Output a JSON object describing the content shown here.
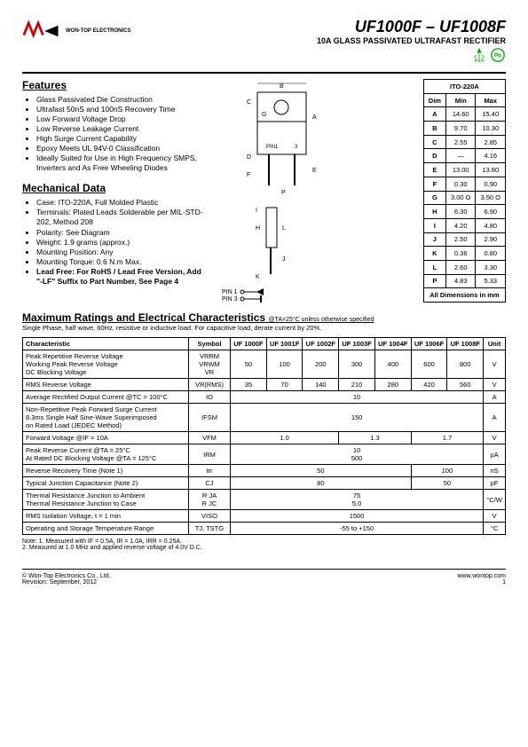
{
  "header": {
    "company": "WON-TOP ELECTRONICS",
    "part_title": "UF1000F – UF1008F",
    "subtitle": "10A GLASS PASSIVATED ULTRAFAST RECTIFIER",
    "rohs": "RoHS",
    "pb": "Pb"
  },
  "features": {
    "title": "Features",
    "items": [
      "Glass Passivated Die Construction",
      "Ultrafast 50nS and 100nS Recovery Time",
      "Low Forward Voltage Drop",
      "Low Reverse Leakage Current",
      "High Surge Current Capability",
      "Epoxy Meets UL 94V-0 Classification",
      "Ideally Suited for Use in High Frequency SMPS, Inverters and As Free Wheeling Diodes"
    ]
  },
  "mechanical": {
    "title": "Mechanical Data",
    "items": [
      "Case: ITO-220A, Full Molded Plastic",
      "Terminals: Plated Leads Solderable per MIL-STD-202, Method 208",
      "Polarity: See Diagram",
      "Weight: 1.9 grams (approx.)",
      "Mounting Position: Any",
      "Mounting Torque: 0.6 N.m Max."
    ],
    "leadfree": "Lead Free: For RoHS / Lead Free Version, Add \"-LF\" Suffix to Part Number, See Page 4"
  },
  "dim_table": {
    "header": "ITO-220A",
    "cols": [
      "Dim",
      "Min",
      "Max"
    ],
    "rows": [
      [
        "A",
        "14.60",
        "15.40"
      ],
      [
        "B",
        "9.70",
        "10.30"
      ],
      [
        "C",
        "2.55",
        "2.85"
      ],
      [
        "D",
        "—",
        "4.16"
      ],
      [
        "E",
        "13.00",
        "13.80"
      ],
      [
        "F",
        "0.30",
        "0.90"
      ],
      [
        "G",
        "3.00 O",
        "3.50 O"
      ],
      [
        "H",
        "6.30",
        "6.90"
      ],
      [
        "I",
        "4.20",
        "4.80"
      ],
      [
        "J",
        "2.50",
        "2.90"
      ],
      [
        "K",
        "0.36",
        "0.80"
      ],
      [
        "L",
        "2.60",
        "3.30"
      ],
      [
        "P",
        "4.83",
        "5.33"
      ]
    ],
    "footer": "All Dimensions in mm"
  },
  "pins": {
    "p1": "PIN 1",
    "p3": "PIN 3",
    "pkg_pin1": "PIN1",
    "pkg_pin3": "3"
  },
  "ratings": {
    "title": "Maximum Ratings and Electrical Characteristics",
    "cond": "@TA=25°C unless otherwise specified",
    "note": "Single Phase, half wave, 60Hz, resistive or inductive load. For capacitive load, derate current by 20%."
  },
  "elec": {
    "headers": [
      "Characteristic",
      "Symbol",
      "UF 1000F",
      "UF 1001F",
      "UF 1002F",
      "UF 1003F",
      "UF 1004F",
      "UF 1006F",
      "UF 1008F",
      "Unit"
    ],
    "rows": [
      {
        "char": "Peak Repetitive Reverse Voltage\nWorking Peak Reverse Voltage\nDC Blocking Voltage",
        "sym": "VRRM\nVRWM\nVR",
        "vals": [
          "50",
          "100",
          "200",
          "300",
          "400",
          "600",
          "800"
        ],
        "unit": "V"
      },
      {
        "char": "RMS Reverse Voltage",
        "sym": "VR(RMS)",
        "vals": [
          "35",
          "70",
          "140",
          "210",
          "280",
          "420",
          "560"
        ],
        "unit": "V"
      },
      {
        "char": "Average Rectified Output Current    @TC = 100°C",
        "sym": "IO",
        "span": "10",
        "unit": "A"
      },
      {
        "char": "Non-Repetitive Peak Forward Surge Current\n8.3ms Single Half Sine-Wave Superimposed\non Rated Load (JEDEC Method)",
        "sym": "IFSM",
        "span": "150",
        "unit": "A"
      },
      {
        "char": "Forward Voltage                    @IF = 10A",
        "sym": "VFM",
        "grp": [
          "1.0",
          "1.3",
          "1.7"
        ],
        "gcols": [
          3,
          2,
          2
        ],
        "unit": "V"
      },
      {
        "char": "Peak Reverse Current            @TA = 25°C\nAt Rated DC Blocking Voltage    @TA = 125°C",
        "sym": "IRM",
        "span": "10\n500",
        "unit": "µA"
      },
      {
        "char": "Reverse Recovery Time (Note 1)",
        "sym": "trr",
        "grp": [
          "50",
          "100"
        ],
        "gcols": [
          5,
          2
        ],
        "unit": "nS"
      },
      {
        "char": "Typical Junction Capacitance (Note 2)",
        "sym": "CJ",
        "grp": [
          "80",
          "50"
        ],
        "gcols": [
          5,
          2
        ],
        "unit": "pF"
      },
      {
        "char": "Thermal Resistance Junction to Ambient\nThermal Resistance Junction to Case",
        "sym": "R JA\nR JC",
        "span": "75\n5.0",
        "unit": "°C/W"
      },
      {
        "char": "RMS Isolation Voltage, t = 1 min",
        "sym": "VISO",
        "span": "1500",
        "unit": "V"
      },
      {
        "char": "Operating and Storage Temperature Range",
        "sym": "TJ, TSTG",
        "span": "-55 to +150",
        "unit": "°C"
      }
    ]
  },
  "notes": {
    "n1": "Note:  1. Measured with IF = 0.5A, IR = 1.0A, IRR = 0.25A.",
    "n2": "          2. Measured at 1.0 MHz and applied reverse voltage of 4.0V D.C."
  },
  "footer": {
    "copy": "© Won-Top Electronics Co., Ltd.",
    "rev": "Revision: September, 2012",
    "url": "www.wontop.com",
    "page": "1"
  },
  "colors": {
    "accent": "#c00",
    "text": "#000",
    "pb_green": "#0a0"
  }
}
